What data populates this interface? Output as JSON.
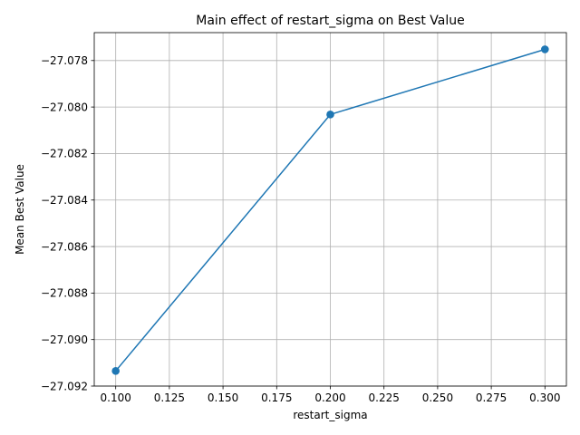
{
  "chart_data": {
    "type": "line",
    "title": "Main effect of restart_sigma on Best Value",
    "xlabel": "restart_sigma",
    "ylabel": "Mean Best Value",
    "x": [
      0.1,
      0.2,
      0.3
    ],
    "series": [
      {
        "values": [
          -27.09135,
          -27.08032,
          -27.07752
        ],
        "color": "#1f77b4",
        "marker": "circle"
      }
    ],
    "xlim": [
      0.09,
      0.31
    ],
    "ylim": [
      -27.092,
      -27.0768
    ],
    "xticks": [
      "0.100",
      "0.125",
      "0.150",
      "0.175",
      "0.200",
      "0.225",
      "0.250",
      "0.275",
      "0.300"
    ],
    "yticks": [
      "−27.092",
      "−27.090",
      "−27.088",
      "−27.086",
      "−27.084",
      "−27.082",
      "−27.080",
      "−27.078"
    ],
    "grid": true,
    "legend": "none"
  }
}
